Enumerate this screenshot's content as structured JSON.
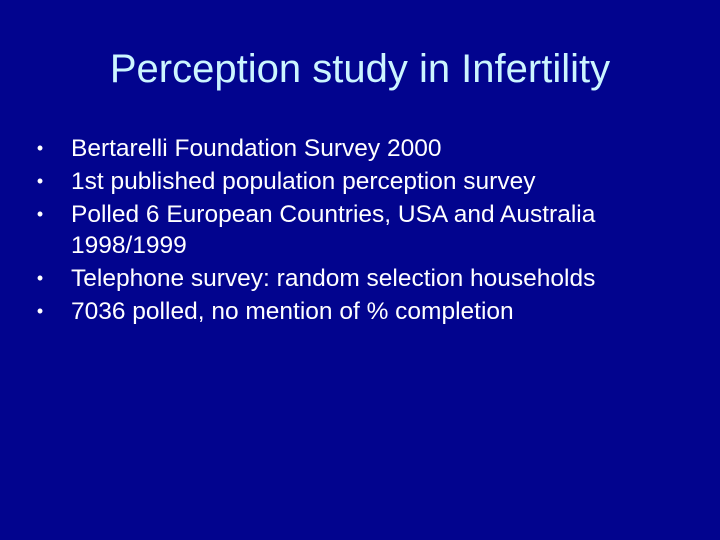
{
  "slide": {
    "title": "Perception study in Infertility",
    "bullet_glyph": "•",
    "bullets": [
      {
        "text": "Bertarelli Foundation Survey 2000"
      },
      {
        "text": "1st published population perception survey"
      },
      {
        "text": "Polled 6 European Countries, USA and Australia 1998/1999"
      },
      {
        "text": "Telephone survey: random selection households"
      },
      {
        "text": "7036 polled, no mention of % completion"
      }
    ]
  },
  "colors": {
    "background": "#02048e",
    "title": "#ccf5ff",
    "body_text": "#ffffff"
  }
}
